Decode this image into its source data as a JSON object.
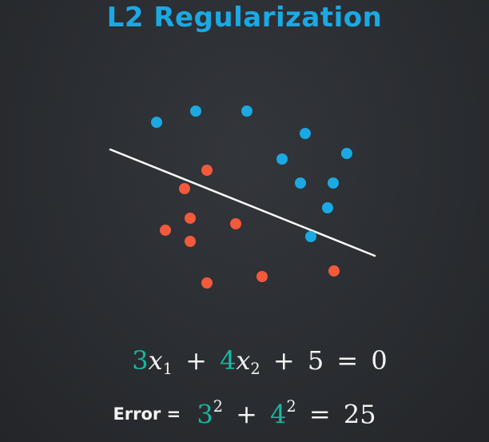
{
  "title": "L2 Regularization",
  "colors": {
    "blue_points": "#1ba9e3",
    "red_points": "#f3593b",
    "boundary_line": "#ffffff",
    "coefficient": "#15b8a2",
    "title": "#1ba9e3"
  },
  "equation": {
    "coef1": "3",
    "var1": "x",
    "sub1": "1",
    "plus1": "+",
    "coef2": "4",
    "var2": "x",
    "sub2": "2",
    "plus2": "+",
    "constant": "5",
    "equals": "=",
    "rhs": "0"
  },
  "error": {
    "label": "Error =",
    "base1": "3",
    "exp1": "2",
    "plus": "+",
    "base2": "4",
    "exp2": "2",
    "equals": "=",
    "result": "25"
  }
}
